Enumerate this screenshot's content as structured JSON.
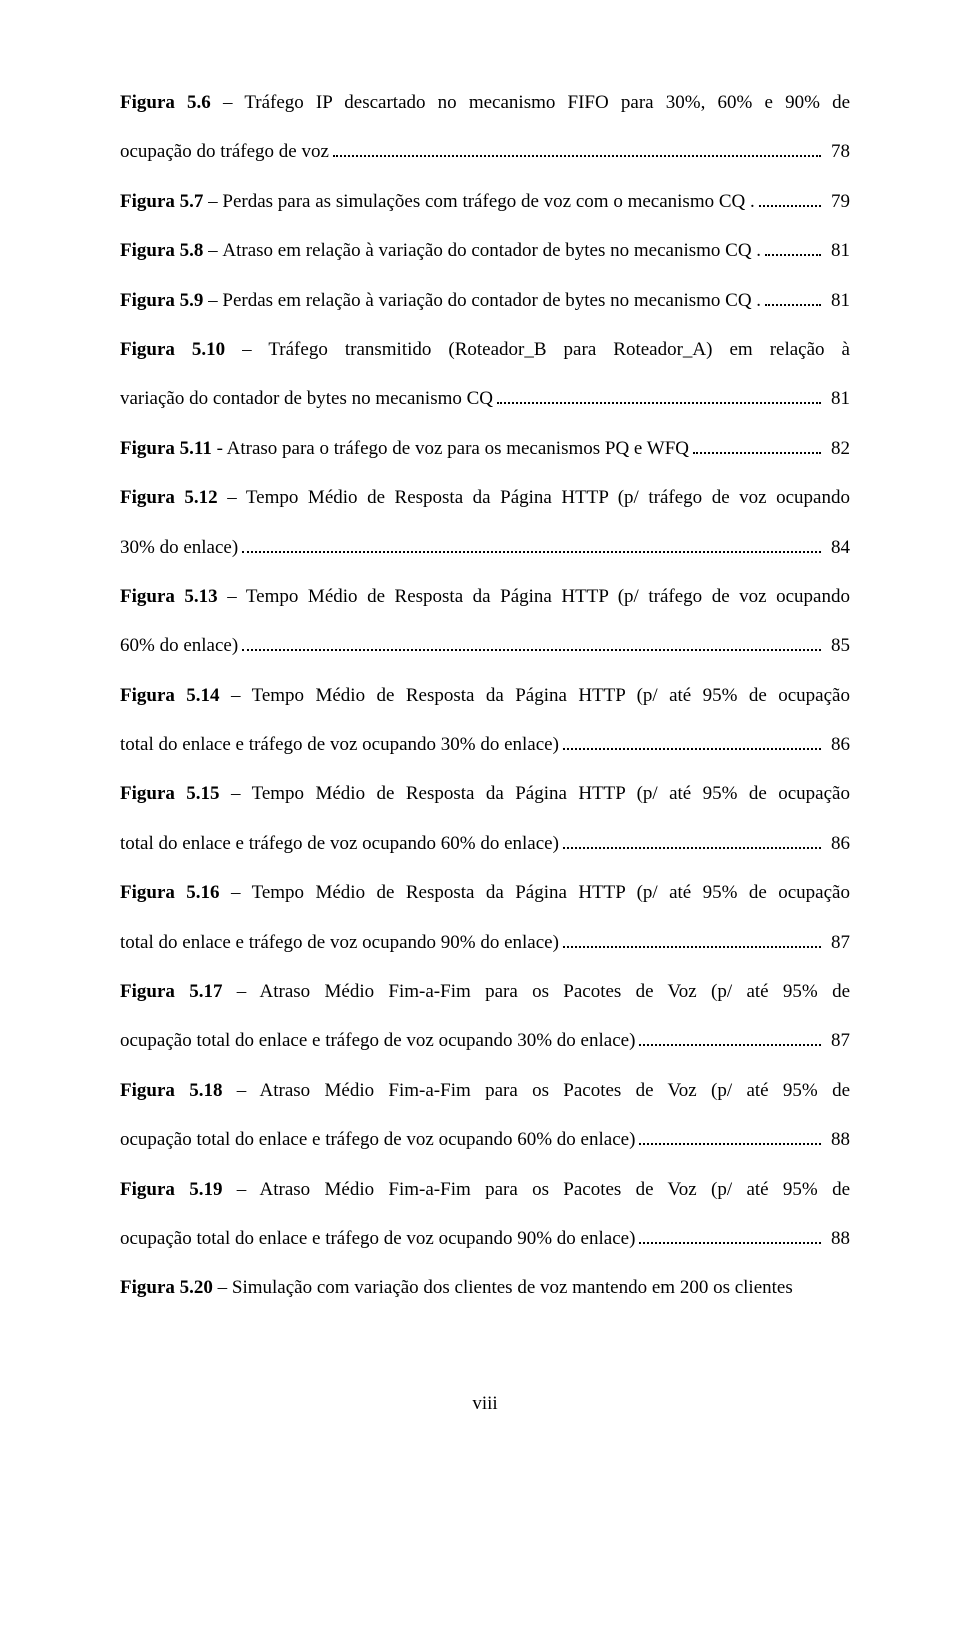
{
  "entries": [
    {
      "label": "Figura 5.6",
      "lines": [
        "Tráfego IP descartado no mecanismo FIFO para 30%, 60% e 90% de"
      ],
      "tail": "ocupação do tráfego de voz",
      "page": "78"
    },
    {
      "label": "Figura 5.7",
      "lines": [],
      "tail": "Perdas para as simulações com tráfego de voz com o mecanismo CQ .",
      "page": "79"
    },
    {
      "label": "Figura 5.8",
      "lines": [],
      "tail": "Atraso em relação à variação do contador de bytes no mecanismo CQ .",
      "page": "81"
    },
    {
      "label": "Figura 5.9",
      "lines": [],
      "tail": "Perdas em relação à variação do contador de bytes no mecanismo CQ .",
      "page": "81"
    },
    {
      "label": "Figura 5.10",
      "lines": [
        "Tráfego transmitido (Roteador_B para Roteador_A) em relação à"
      ],
      "tail": "variação do contador de bytes no mecanismo CQ",
      "page": "81"
    },
    {
      "label": "Figura 5.11",
      "lines": [],
      "tail": "- Atraso para o tráfego de voz para os mecanismos PQ e WFQ",
      "dash": " ",
      "page": "82"
    },
    {
      "label": "Figura 5.12",
      "lines": [
        "Tempo Médio de Resposta da Página HTTP (p/ tráfego de voz ocupando"
      ],
      "tail": "30% do enlace)",
      "page": "84"
    },
    {
      "label": "Figura 5.13",
      "lines": [
        "Tempo Médio de Resposta da Página HTTP (p/ tráfego de voz ocupando"
      ],
      "tail": "60% do enlace)",
      "page": "85"
    },
    {
      "label": "Figura 5.14",
      "lines": [
        "Tempo Médio de Resposta da Página HTTP (p/ até 95% de ocupação"
      ],
      "tail": "total do enlace e tráfego de voz ocupando 30% do enlace)",
      "page": "86"
    },
    {
      "label": "Figura 5.15",
      "lines": [
        "Tempo Médio de Resposta da Página HTTP (p/ até 95% de ocupação"
      ],
      "tail": "total do enlace e tráfego de voz ocupando 60% do enlace)",
      "page": "86"
    },
    {
      "label": "Figura 5.16",
      "lines": [
        "Tempo Médio de Resposta da Página HTTP (p/ até 95% de ocupação"
      ],
      "tail": "total do enlace e tráfego de voz ocupando 90% do enlace)",
      "page": "87"
    },
    {
      "label": "Figura 5.17",
      "lines": [
        "Atraso Médio Fim-a-Fim para os Pacotes de Voz (p/ até 95% de"
      ],
      "tail": "ocupação total do enlace e tráfego de voz ocupando 30% do enlace)",
      "page": "87"
    },
    {
      "label": "Figura 5.18",
      "lines": [
        "Atraso Médio Fim-a-Fim para os Pacotes de Voz (p/ até 95% de"
      ],
      "tail": "ocupação total do enlace e tráfego de voz ocupando 60% do enlace)",
      "page": "88"
    },
    {
      "label": "Figura 5.19",
      "lines": [
        "Atraso Médio Fim-a-Fim para os Pacotes de Voz (p/ até 95% de"
      ],
      "tail": "ocupação total do enlace e tráfego de voz ocupando 90% do enlace)",
      "page": "88"
    },
    {
      "label": "Figura 5.20",
      "lines": [],
      "tail": "Simulação com variação dos clientes de voz mantendo em 200 os clientes",
      "page": "",
      "no_dots": true
    }
  ],
  "default_dash": " – ",
  "footer": "viii"
}
